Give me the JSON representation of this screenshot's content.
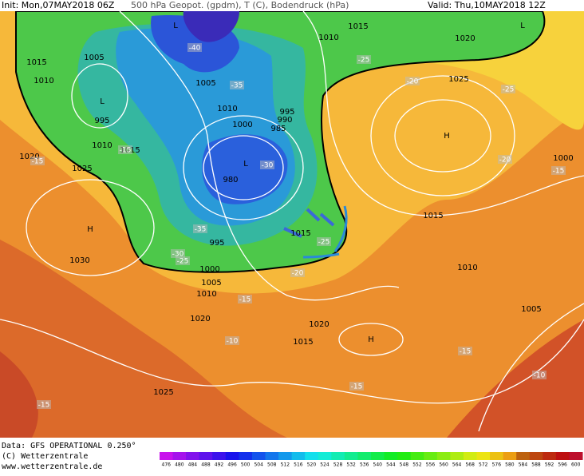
{
  "header": {
    "init": "Init: Mon,07MAY2018 06Z",
    "fields": "500 hPa Geopot. (gpdm), T (C), Bodendruck (hPa)",
    "valid": "Valid: Thu,10MAY2018 12Z"
  },
  "footer": {
    "data": "Data: GFS OPERATIONAL 0.250°",
    "copyright": "(C) Wetterzentrale",
    "url": "www.wetterzentrale.de"
  },
  "map": {
    "pressure_labels": [
      "1015",
      "1010",
      "1005",
      "L",
      "995",
      "1010",
      "1015",
      "1020",
      "1025",
      "H",
      "1030",
      "L",
      "L",
      "1015",
      "1010",
      "1020",
      "1025",
      "1005",
      "1010",
      "1000",
      "995",
      "990",
      "985",
      "L",
      "980",
      "995",
      "1000",
      "1005",
      "1010",
      "1020",
      "H",
      "1000",
      "1015",
      "1015",
      "1010",
      "1005",
      "1020",
      "1015",
      "H",
      "1025"
    ],
    "temperature_labels": [
      "-40",
      "-35",
      "-30",
      "-35",
      "-30",
      "-25",
      "-25",
      "-25",
      "-20",
      "-25",
      "-15",
      "-15",
      "-20",
      "-15",
      "-20",
      "-15",
      "-10",
      "-15",
      "-15",
      "-10",
      "-15"
    ]
  },
  "colorbar": {
    "ticks": [
      476,
      480,
      484,
      488,
      492,
      496,
      500,
      504,
      508,
      512,
      516,
      520,
      524,
      528,
      532,
      536,
      540,
      544,
      548,
      552,
      556,
      560,
      564,
      568,
      572,
      576,
      580,
      584,
      588,
      592,
      596,
      600
    ]
  }
}
